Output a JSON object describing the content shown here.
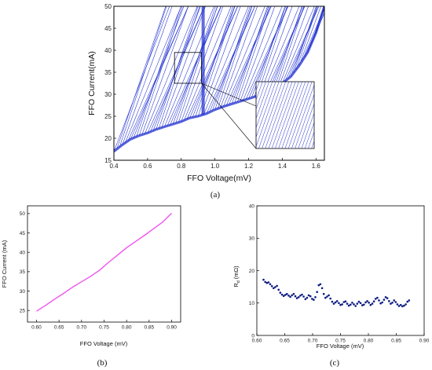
{
  "colors": {
    "curves": "#1f2fd0",
    "line_b": "#ee55ee",
    "points_c": "#0a1a80",
    "axis": "#000000"
  },
  "chart_data": [
    {
      "panel_label": "(a)",
      "type": "line",
      "xlabel": "FFO Voltage(mV)",
      "ylabel": "FFO Current(mA)",
      "xlim": [
        0.4,
        1.65
      ],
      "ylim": [
        15,
        50
      ],
      "xticks": [
        "0.4",
        "0.6",
        "0.8",
        "1.0",
        "1.2",
        "1.4",
        "1.6"
      ],
      "yticks": [
        "15",
        "20",
        "25",
        "30",
        "35",
        "40",
        "45",
        "50"
      ],
      "series_description": "Dense family of FFO I-V curves rising from the lower-left boundary; vertical step near 0.93 mV",
      "boundary": {
        "x": [
          0.4,
          0.45,
          0.5,
          0.55,
          0.6,
          0.65,
          0.7,
          0.75,
          0.8,
          0.85,
          0.9,
          0.95,
          1.0,
          1.05,
          1.1,
          1.15,
          1.2,
          1.25,
          1.3,
          1.35,
          1.4,
          1.45,
          1.5,
          1.55,
          1.6,
          1.65
        ],
        "y": [
          17.0,
          18.5,
          19.8,
          20.6,
          21.2,
          22.0,
          22.6,
          23.2,
          23.8,
          24.6,
          25.0,
          25.6,
          26.5,
          27.2,
          27.8,
          28.4,
          29.0,
          29.6,
          30.3,
          31.2,
          32.5,
          34.0,
          36.5,
          39.5,
          44.0,
          50.0
        ]
      },
      "step_voltage": 0.93,
      "zoom_box": {
        "x": [
          0.76,
          0.92
        ],
        "y": [
          32.5,
          39.5
        ]
      }
    },
    {
      "panel_label": "(b)",
      "type": "line",
      "xlabel": "FFO Voltage (mV)",
      "ylabel": "FFO Current (mA)",
      "xlim": [
        0.58,
        0.92
      ],
      "ylim": [
        22,
        52
      ],
      "xticks": [
        "0.60",
        "0.65",
        "0.70",
        "0.75",
        "0.80",
        "0.85",
        "0.90"
      ],
      "yticks": [
        "25",
        "30",
        "35",
        "40",
        "45",
        "50"
      ],
      "x": [
        0.6,
        0.62,
        0.64,
        0.66,
        0.68,
        0.7,
        0.72,
        0.74,
        0.76,
        0.78,
        0.8,
        0.82,
        0.84,
        0.86,
        0.88,
        0.9
      ],
      "y": [
        24.8,
        26.3,
        27.9,
        29.4,
        31.0,
        32.4,
        33.8,
        35.4,
        37.4,
        39.3,
        41.2,
        42.8,
        44.4,
        46.1,
        47.8,
        50.1
      ]
    },
    {
      "panel_label": "(c)",
      "type": "scatter",
      "xlabel": "FFO Voltage (mV)",
      "ylabel": "R",
      "ylabel_sub": "d",
      "ylabel_unit": "(mΩ)",
      "xlim": [
        0.6,
        0.9
      ],
      "ylim": [
        0,
        40
      ],
      "xticks": [
        "0.60",
        "0.65",
        "0.70",
        "0.75",
        "0.80",
        "0.85",
        "0.90"
      ],
      "yticks": [
        "0",
        "10",
        "20",
        "30",
        "40"
      ],
      "x": [
        0.612,
        0.615,
        0.618,
        0.621,
        0.624,
        0.627,
        0.63,
        0.633,
        0.636,
        0.639,
        0.642,
        0.645,
        0.648,
        0.651,
        0.654,
        0.657,
        0.66,
        0.663,
        0.666,
        0.669,
        0.672,
        0.675,
        0.678,
        0.681,
        0.684,
        0.687,
        0.69,
        0.693,
        0.696,
        0.699,
        0.702,
        0.705,
        0.708,
        0.711,
        0.714,
        0.717,
        0.72,
        0.723,
        0.726,
        0.729,
        0.732,
        0.735,
        0.738,
        0.741,
        0.744,
        0.747,
        0.75,
        0.753,
        0.756,
        0.759,
        0.762,
        0.765,
        0.768,
        0.771,
        0.774,
        0.777,
        0.78,
        0.783,
        0.786,
        0.789,
        0.792,
        0.795,
        0.798,
        0.801,
        0.804,
        0.807,
        0.81,
        0.813,
        0.816,
        0.819,
        0.822,
        0.825,
        0.828,
        0.831,
        0.834,
        0.837,
        0.84,
        0.843,
        0.846,
        0.849,
        0.852,
        0.855,
        0.858,
        0.861,
        0.864,
        0.867,
        0.87,
        0.873
      ],
      "y": [
        17.2,
        16.5,
        16.2,
        16.4,
        15.8,
        15.2,
        14.6,
        14.9,
        15.3,
        14.1,
        13.2,
        12.6,
        12.2,
        12.5,
        12.8,
        12.3,
        11.9,
        12.4,
        12.8,
        12.1,
        11.5,
        11.8,
        12.3,
        12.6,
        12.0,
        11.2,
        11.6,
        12.4,
        12.1,
        11.3,
        11.0,
        11.8,
        13.4,
        15.5,
        15.8,
        14.6,
        12.8,
        11.6,
        12.0,
        12.4,
        11.4,
        10.4,
        9.8,
        10.2,
        10.6,
        10.0,
        9.4,
        9.6,
        10.3,
        10.5,
        9.8,
        9.2,
        9.5,
        10.1,
        9.6,
        9.1,
        9.8,
        10.4,
        10.0,
        9.3,
        9.5,
        10.2,
        10.6,
        10.1,
        9.4,
        9.8,
        10.5,
        11.3,
        11.6,
        10.8,
        9.9,
        10.2,
        11.0,
        11.8,
        11.5,
        10.6,
        9.8,
        10.1,
        10.8,
        10.3,
        9.6,
        9.1,
        9.4,
        9.0,
        9.2,
        9.6,
        10.4,
        10.8
      ]
    }
  ]
}
